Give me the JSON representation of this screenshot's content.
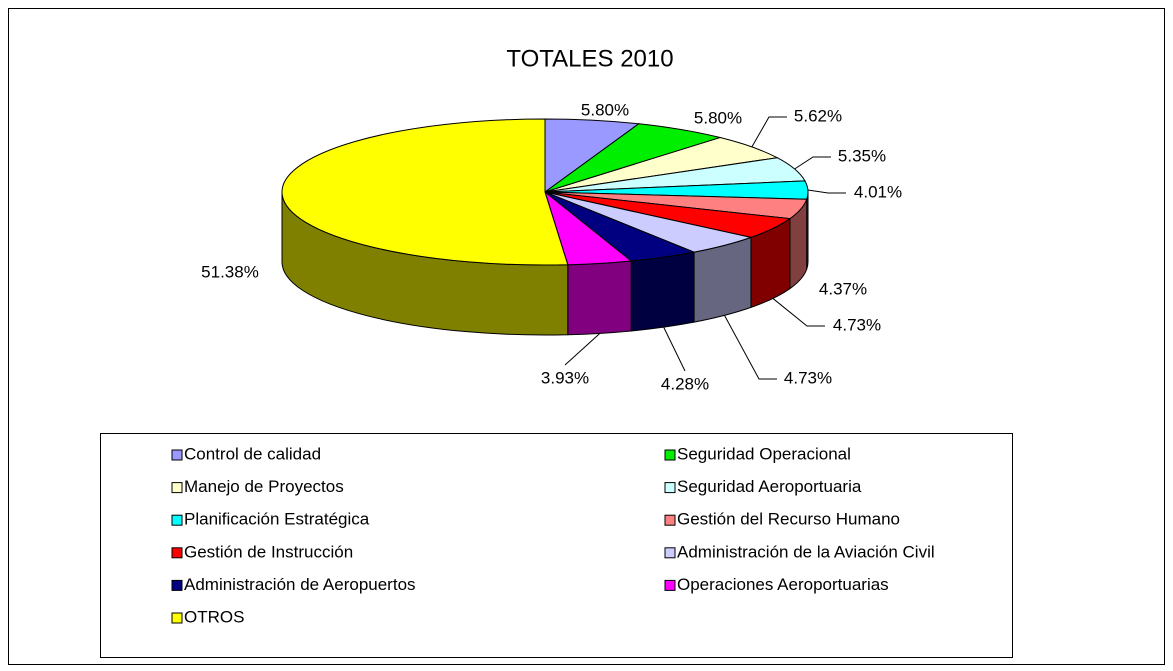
{
  "chart_data": {
    "type": "pie",
    "title": "TOTALES 2010",
    "categories": [
      "Control de calidad",
      "Seguridad Operacional",
      "Manejo de Proyectos",
      "Seguridad Aeroportuaria",
      "Planificación Estratégica",
      "Gestión del Recurso Humano",
      "Gestión de Instrucción",
      "Administración de la Aviación Civil",
      "Administración de Aeropuertos",
      "Operaciones Aeroportuarias",
      "OTROS"
    ],
    "values": [
      5.8,
      5.8,
      5.62,
      5.35,
      4.01,
      4.37,
      4.73,
      4.73,
      4.28,
      3.93,
      51.38
    ],
    "value_labels": [
      "5.80%",
      "5.80%",
      "5.62%",
      "5.35%",
      "4.01%",
      "4.37%",
      "4.73%",
      "4.73%",
      "4.28%",
      "3.93%",
      "51.38%"
    ],
    "colors": [
      "#9999ff",
      "#00ee00",
      "#ffffcc",
      "#ccffff",
      "#00ffff",
      "#ff8080",
      "#ff0000",
      "#ccccff",
      "#000080",
      "#ff00ff",
      "#ffff00"
    ],
    "legend": "bottom"
  }
}
